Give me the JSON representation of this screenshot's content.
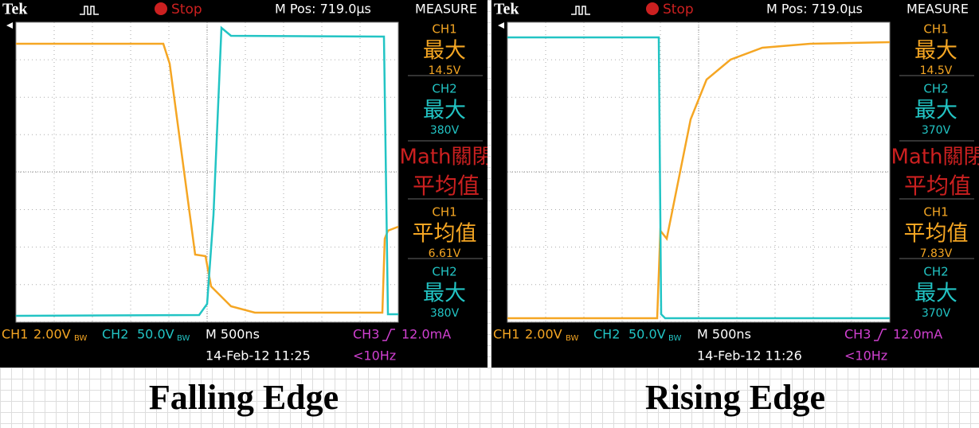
{
  "panels": [
    {
      "header": {
        "brand": "Tek",
        "state": "Stop",
        "mpos": "M Pos: 719.0µs",
        "menu": "MEASURE"
      },
      "measures": [
        [
          "CH1",
          "最大",
          "14.5V"
        ],
        [
          "CH2",
          "最大",
          "380V"
        ],
        [
          "Math關閉",
          "平均值"
        ],
        [
          "CH1",
          "平均值",
          "6.61V"
        ],
        [
          "CH2",
          "最大",
          "380V"
        ]
      ],
      "footer": {
        "ch1": "CH1",
        "ch1_scale": "2.00V",
        "ch2": "CH2",
        "ch2_scale": "50.0V",
        "bw": "BW",
        "timebase": "M 500ns",
        "ch3": "CH3",
        "trigger": "12.0mA",
        "date": "14-Feb-12 11:25",
        "freq": "<10Hz"
      },
      "caption": "Falling Edge"
    },
    {
      "header": {
        "brand": "Tek",
        "state": "Stop",
        "mpos": "M Pos: 719.0µs",
        "menu": "MEASURE"
      },
      "measures": [
        [
          "CH1",
          "最大",
          "14.5V"
        ],
        [
          "CH2",
          "最大",
          "370V"
        ],
        [
          "Math關閉",
          "平均值"
        ],
        [
          "CH1",
          "平均值",
          "7.83V"
        ],
        [
          "CH2",
          "最大",
          "370V"
        ]
      ],
      "footer": {
        "ch1": "CH1",
        "ch1_scale": "2.00V",
        "ch2": "CH2",
        "ch2_scale": "50.0V",
        "bw": "BW",
        "timebase": "M 500ns",
        "ch3": "CH3",
        "trigger": "12.0mA",
        "date": "14-Feb-12 11:26",
        "freq": "<10Hz"
      },
      "caption": "Rising Edge"
    }
  ]
}
